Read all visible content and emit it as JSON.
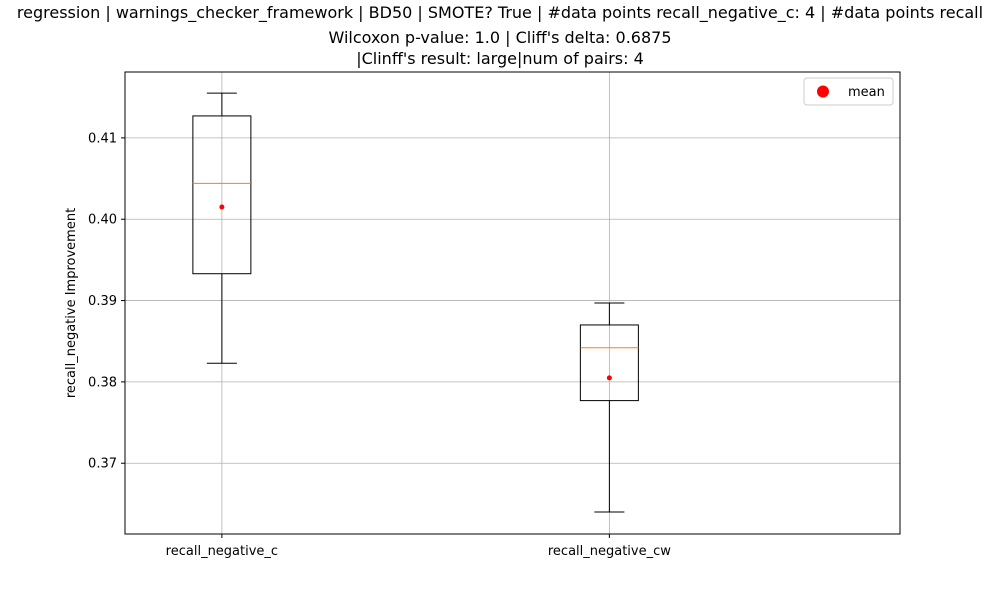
{
  "chart_data": {
    "type": "box",
    "title_lines": [
      "regression | warnings_checker_framework | BD50 | SMOTE? True | #data points recall_negative_c: 4 | #data points recall",
      "Wilcoxon p-value: 1.0 | Cliff's delta: 0.6875",
      "|Clinff's result: large|num of pairs: 4"
    ],
    "ylabel": "recall_negative Improvement",
    "xlabel": "",
    "categories": [
      "recall_negative_c",
      "recall_negative_cw"
    ],
    "boxes": [
      {
        "whisker_low": 0.3823,
        "q1": 0.3933,
        "median": 0.4044,
        "q3": 0.4127,
        "whisker_high": 0.4155,
        "mean": 0.4015
      },
      {
        "whisker_low": 0.364,
        "q1": 0.3777,
        "median": 0.3842,
        "q3": 0.387,
        "whisker_high": 0.3897,
        "mean": 0.3805
      }
    ],
    "ylim": [
      0.3613,
      0.4181
    ],
    "yticks": [
      0.37,
      0.38,
      0.39,
      0.4,
      0.41
    ],
    "ytick_labels": [
      "0.37",
      "0.38",
      "0.39",
      "0.40",
      "0.41"
    ],
    "grid": true,
    "legend": {
      "placement": "top-right",
      "entries": [
        {
          "label": "mean",
          "color": "#ff0000"
        }
      ]
    },
    "colors": {
      "box": "#000000",
      "median": "#ff7f0e",
      "mean": "#ff0000",
      "grid": "#b0b0b0"
    }
  }
}
